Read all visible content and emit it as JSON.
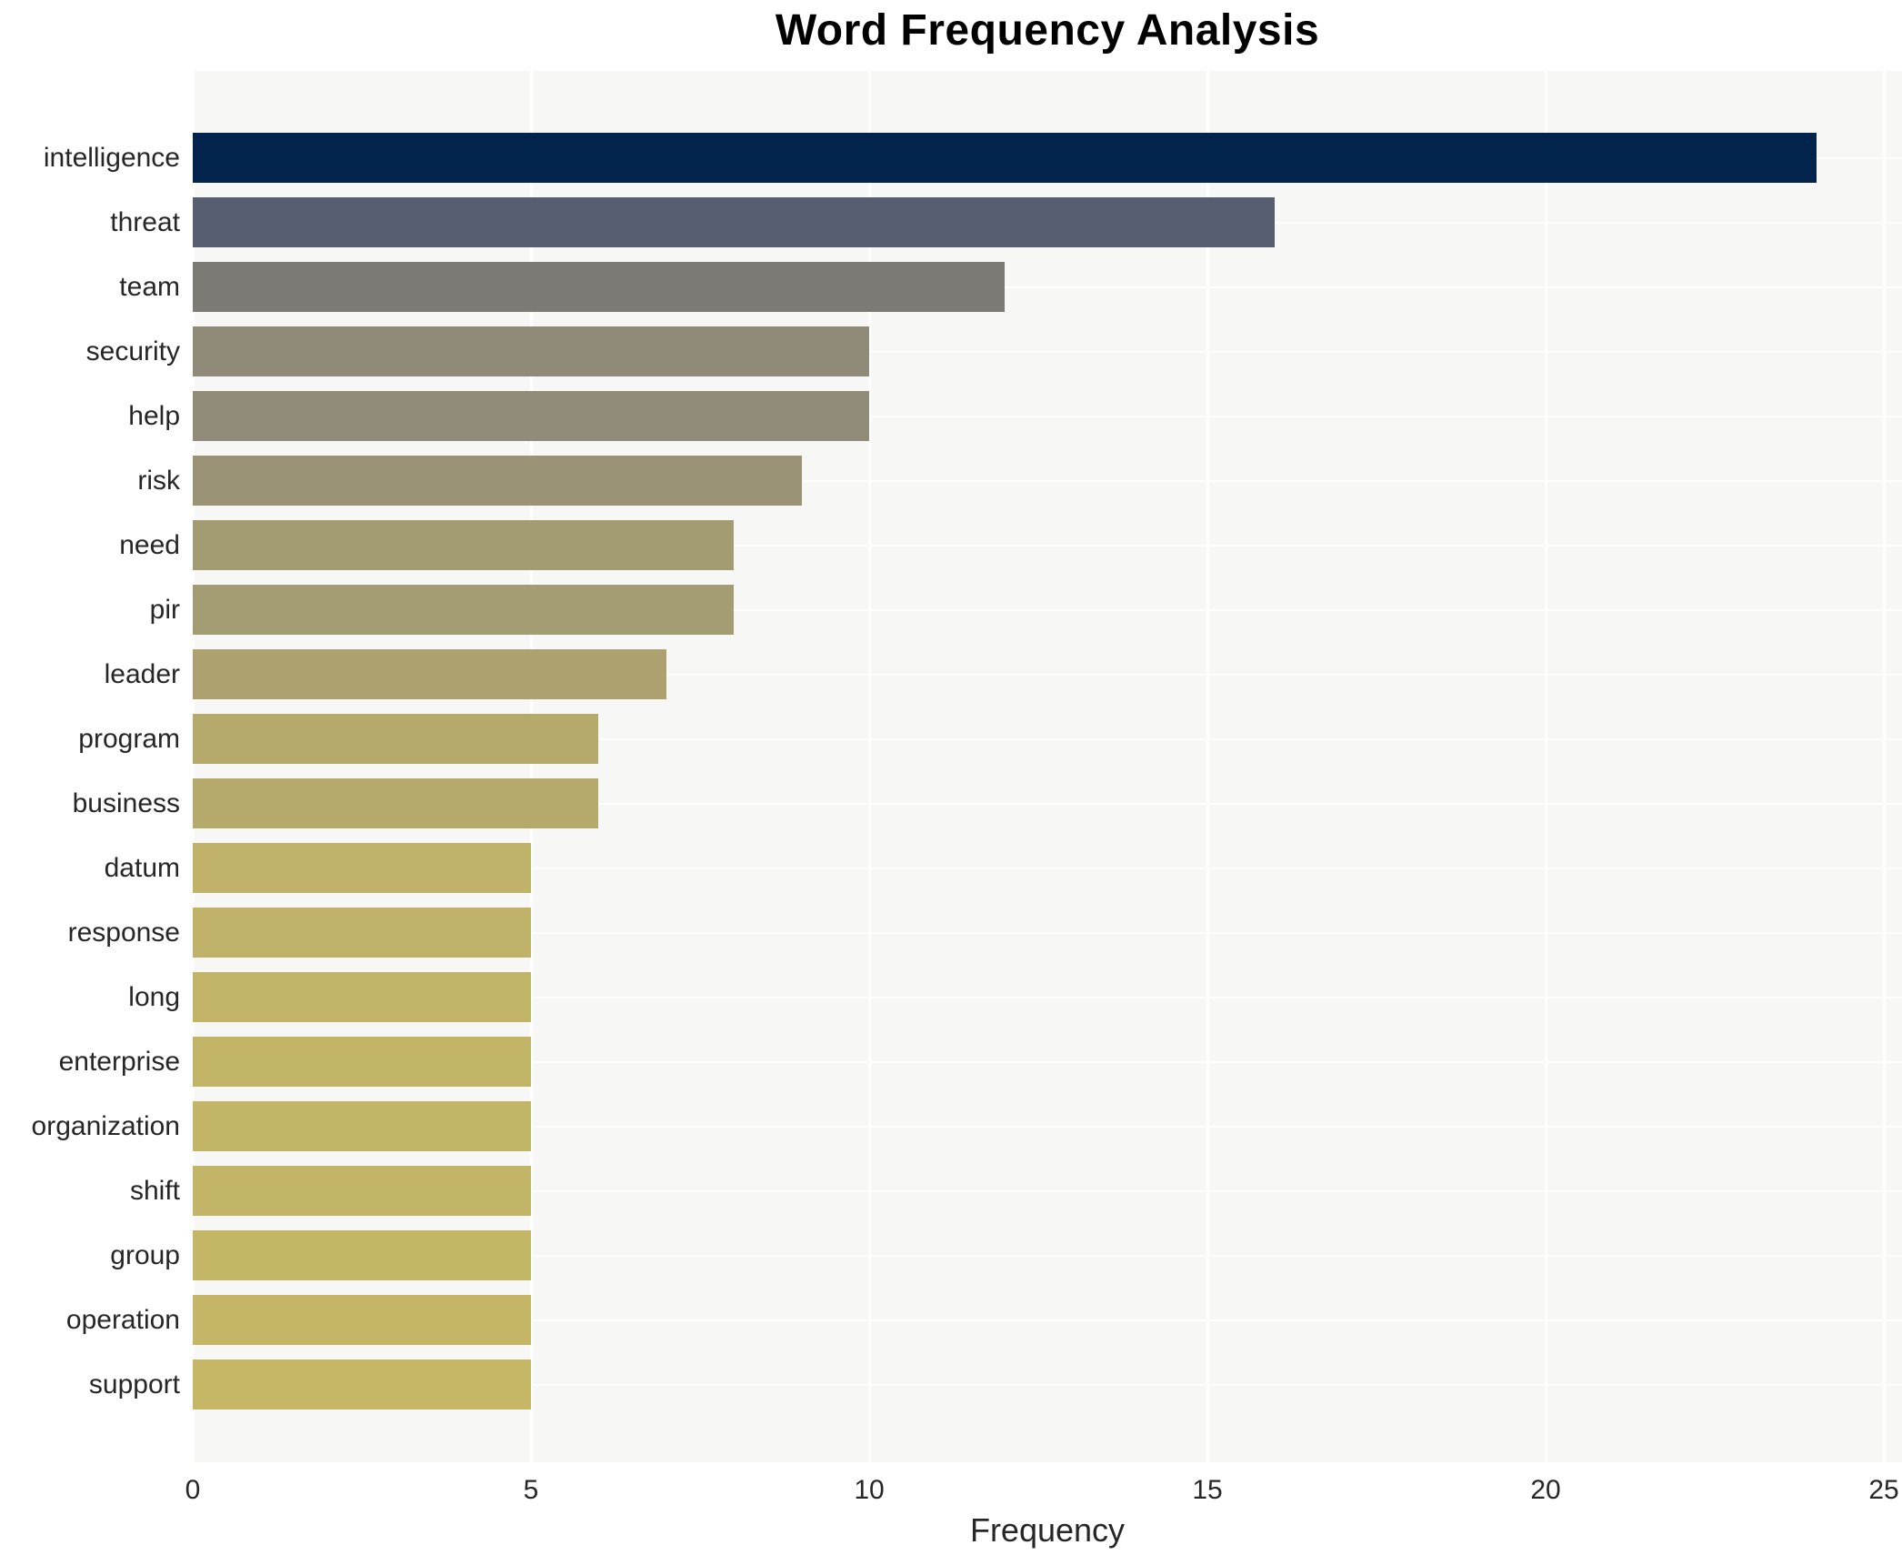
{
  "chart_data": {
    "type": "bar",
    "orientation": "horizontal",
    "title": "Word Frequency Analysis",
    "xlabel": "Frequency",
    "ylabel": "",
    "xlim": [
      0,
      25
    ],
    "x_ticks": [
      0,
      5,
      10,
      15,
      20,
      25
    ],
    "grid": true,
    "legend_position": "none",
    "plot_background": "#f7f7f5",
    "gridline_color": "#ffffff",
    "categories": [
      "intelligence",
      "threat",
      "team",
      "security",
      "help",
      "risk",
      "need",
      "pir",
      "leader",
      "program",
      "business",
      "datum",
      "response",
      "long",
      "enterprise",
      "organization",
      "shift",
      "group",
      "operation",
      "support"
    ],
    "values": [
      24,
      16,
      12,
      10,
      10,
      9,
      8,
      8,
      7,
      6,
      6,
      5,
      5,
      5,
      5,
      5,
      5,
      5,
      5,
      5
    ],
    "bar_colors": [
      "#02234C",
      "#575E72",
      "#7B7A74",
      "#908B78",
      "#918C79",
      "#9A9376",
      "#A39C73",
      "#A49C72",
      "#ADA26F",
      "#B5AA6C",
      "#B5AA6C",
      "#C0B269",
      "#C0B369",
      "#C1B468",
      "#C2B467",
      "#C2B567",
      "#C3B567",
      "#C3B666",
      "#C4B666",
      "#C5B766"
    ]
  }
}
